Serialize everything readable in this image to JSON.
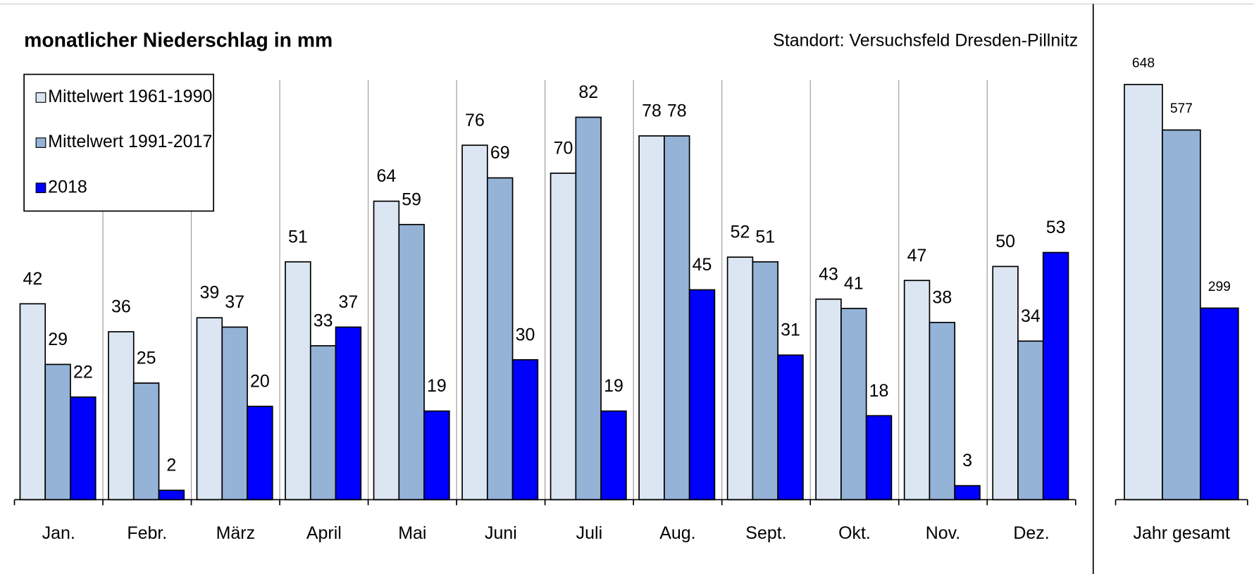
{
  "chart_data": [
    {
      "type": "bar",
      "title": "monatlicher Niederschlag in mm",
      "subtitle": "Standort: Versuchsfeld Dresden-Pillnitz",
      "categories": [
        "Jan.",
        "Febr.",
        "März",
        "April",
        "Mai",
        "Juni",
        "Juli",
        "Aug.",
        "Sept.",
        "Okt.",
        "Nov.",
        "Dez."
      ],
      "series": [
        {
          "name": "Mittelwert 1961-1990",
          "color": "#dce6f2",
          "values": [
            42,
            36,
            39,
            51,
            64,
            76,
            70,
            78,
            52,
            43,
            47,
            50
          ]
        },
        {
          "name": "Mittelwert 1991-2017",
          "color": "#95b3d7",
          "values": [
            29,
            25,
            37,
            33,
            59,
            69,
            82,
            78,
            51,
            41,
            38,
            34
          ]
        },
        {
          "name": "2018",
          "color": "#0000ff",
          "values": [
            22,
            2,
            20,
            37,
            19,
            30,
            19,
            45,
            31,
            18,
            3,
            53
          ]
        }
      ],
      "ylim": [
        0,
        90
      ],
      "legend": "top-left"
    },
    {
      "type": "bar",
      "categories": [
        "Jahr gesamt"
      ],
      "series": [
        {
          "color": "#dce6f2",
          "values": [
            648
          ]
        },
        {
          "color": "#95b3d7",
          "values": [
            577
          ]
        },
        {
          "color": "#0000ff",
          "values": [
            299
          ]
        }
      ],
      "ylim": [
        0,
        730
      ]
    }
  ]
}
